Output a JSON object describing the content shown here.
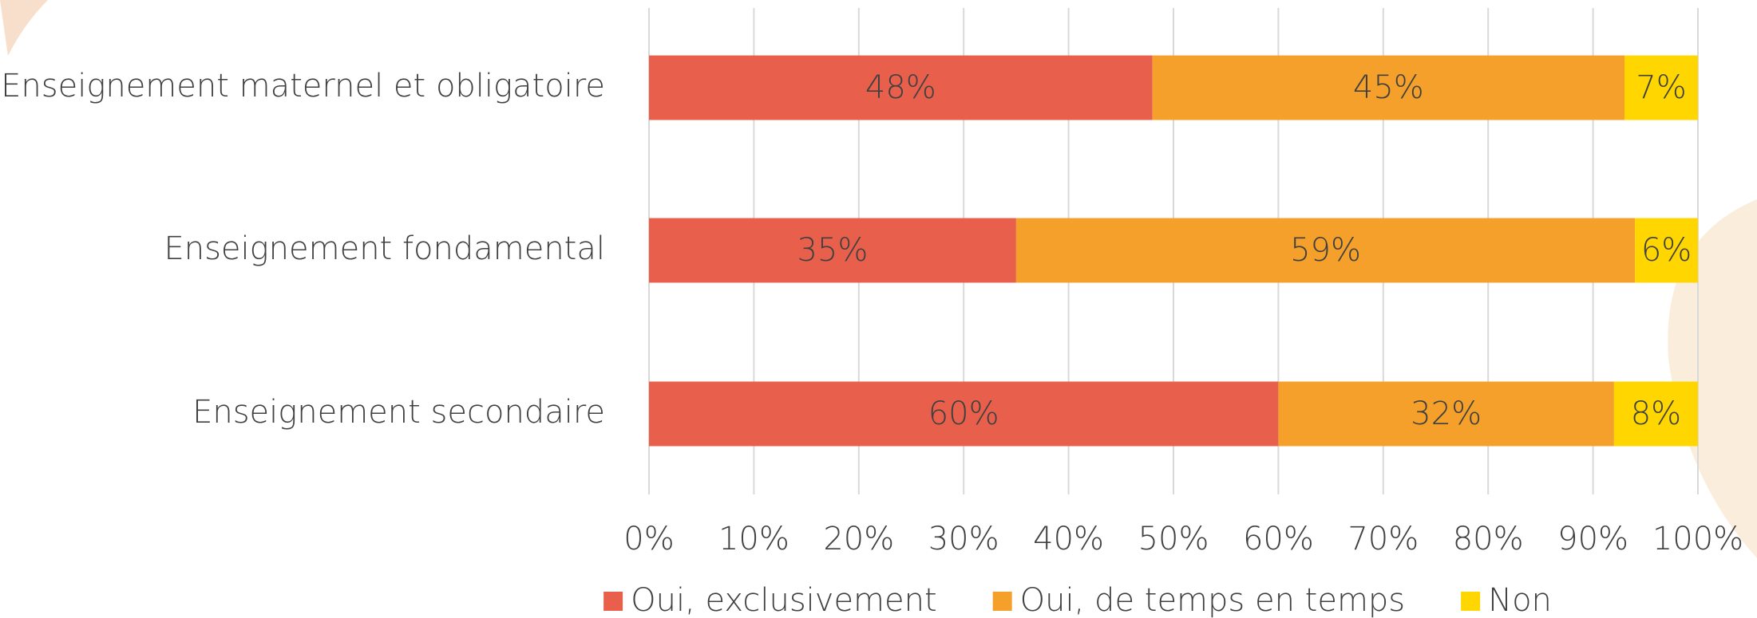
{
  "chart_data": {
    "type": "bar",
    "orientation": "horizontal",
    "stacked": true,
    "categories": [
      "Enseignement maternel et obligatoire",
      "Enseignement fondamental",
      "Enseignement secondaire"
    ],
    "series": [
      {
        "name": "Oui, exclusivement",
        "color": "#e8604c",
        "values": [
          48,
          35,
          60
        ],
        "value_labels": [
          "48%",
          "35%",
          "60%"
        ]
      },
      {
        "name": "Oui, de temps en temps",
        "color": "#f5a02a",
        "values": [
          45,
          59,
          32
        ],
        "value_labels": [
          "45%",
          "59%",
          "32%"
        ]
      },
      {
        "name": "Non",
        "color": "#ffd600",
        "values": [
          7,
          6,
          8
        ],
        "value_labels": [
          "7%",
          "6%",
          "8%"
        ]
      }
    ],
    "xlim": [
      0,
      100
    ],
    "xticks": [
      {
        "value": 0,
        "label": "0%"
      },
      {
        "value": 10,
        "label": "10%"
      },
      {
        "value": 20,
        "label": "20%"
      },
      {
        "value": 30,
        "label": "30%"
      },
      {
        "value": 40,
        "label": "40%"
      },
      {
        "value": 50,
        "label": "50%"
      },
      {
        "value": 60,
        "label": "60%"
      },
      {
        "value": 70,
        "label": "70%"
      },
      {
        "value": 80,
        "label": "80%"
      },
      {
        "value": 90,
        "label": "90%"
      },
      {
        "value": 100,
        "label": "100%"
      }
    ],
    "grid": true,
    "legend": "bottom"
  }
}
